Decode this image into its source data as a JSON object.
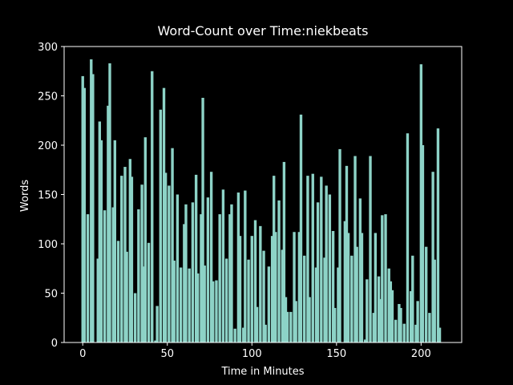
{
  "chart_data": {
    "type": "bar",
    "title": "Word-Count over Time:niekbeats",
    "x_label": "Time in Minutes",
    "y_label": "Words",
    "color": "#8dd3c7",
    "x": [
      0,
      1,
      3,
      5,
      6,
      9,
      10,
      11,
      13,
      15,
      16,
      18,
      19,
      21,
      23,
      25,
      26,
      28,
      29,
      31,
      33,
      35,
      36,
      37,
      39,
      41,
      43,
      44,
      46,
      48,
      49,
      51,
      53,
      54,
      56,
      58,
      60,
      61,
      63,
      65,
      67,
      68,
      70,
      71,
      72,
      74,
      76,
      77,
      79,
      81,
      83,
      85,
      87,
      88,
      90,
      92,
      93,
      95,
      96,
      98,
      100,
      102,
      103,
      105,
      107,
      108,
      110,
      112,
      113,
      114,
      116,
      118,
      119,
      120,
      121,
      123,
      125,
      126,
      128,
      129,
      131,
      133,
      134,
      136,
      138,
      139,
      141,
      143,
      144,
      146,
      148,
      149,
      151,
      152,
      155,
      156,
      157,
      159,
      161,
      162,
      164,
      165,
      167,
      168,
      170,
      172,
      173,
      175,
      176,
      177,
      179,
      181,
      182,
      183,
      185,
      187,
      188,
      190,
      192,
      194,
      195,
      197,
      198,
      200,
      201,
      203,
      205,
      207,
      208,
      210,
      211
    ],
    "values": [
      270,
      258,
      130,
      287,
      272,
      85,
      224,
      205,
      134,
      240,
      283,
      137,
      205,
      103,
      169,
      178,
      92,
      186,
      168,
      50,
      135,
      160,
      77,
      208,
      101,
      275,
      2,
      37,
      236,
      258,
      172,
      159,
      197,
      83,
      150,
      76,
      120,
      140,
      75,
      142,
      170,
      70,
      130,
      248,
      78,
      147,
      173,
      62,
      63,
      130,
      155,
      85,
      130,
      140,
      14,
      152,
      108,
      15,
      154,
      84,
      108,
      124,
      36,
      118,
      93,
      18,
      77,
      108,
      169,
      112,
      144,
      94,
      183,
      46,
      31,
      31,
      112,
      42,
      112,
      231,
      88,
      169,
      46,
      171,
      76,
      142,
      168,
      86,
      159,
      150,
      113,
      35,
      76,
      196,
      123,
      179,
      111,
      88,
      189,
      97,
      146,
      111,
      3,
      64,
      189,
      30,
      111,
      67,
      44,
      129,
      130,
      75,
      62,
      53,
      23,
      39,
      35,
      19,
      212,
      52,
      88,
      18,
      42,
      282,
      200,
      97,
      30,
      173,
      84,
      217,
      15
    ],
    "xlim": [
      -11,
      224
    ],
    "ylim": [
      0,
      300
    ],
    "xticks": [
      0,
      50,
      100,
      150,
      200
    ],
    "yticks": [
      0,
      50,
      100,
      150,
      200,
      250,
      300
    ]
  }
}
